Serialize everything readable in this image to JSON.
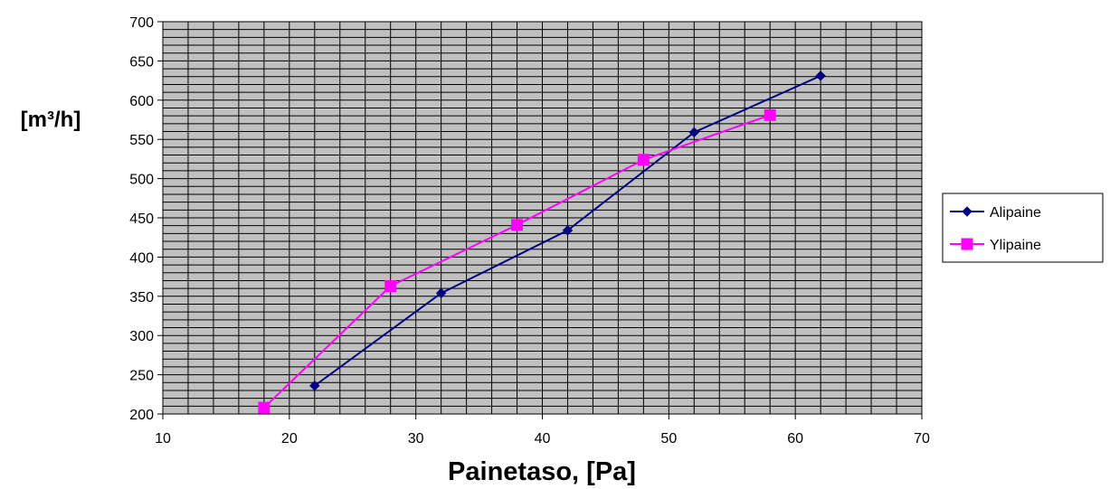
{
  "chart_data": {
    "type": "line",
    "xlabel": "Painetaso, [Pa]",
    "ylabel": "[m³/h]",
    "xlim": [
      10,
      70
    ],
    "ylim": [
      200,
      700
    ],
    "x_ticks": [
      10,
      20,
      30,
      40,
      50,
      60,
      70
    ],
    "y_ticks": [
      200,
      250,
      300,
      350,
      400,
      450,
      500,
      550,
      600,
      650,
      700
    ],
    "grid": "on",
    "plot_background": "#c0c0c0",
    "legend_position": "right",
    "series": [
      {
        "name": "Alipaine",
        "color": "#000080",
        "marker": "diamond",
        "x": [
          22,
          32,
          42,
          52,
          62
        ],
        "y": [
          236,
          354,
          434,
          559,
          631
        ]
      },
      {
        "name": "Ylipaine",
        "color": "#ff00ff",
        "marker": "square",
        "x": [
          18,
          28,
          38,
          48,
          58
        ],
        "y": [
          208,
          363,
          441,
          524,
          581
        ]
      }
    ]
  }
}
